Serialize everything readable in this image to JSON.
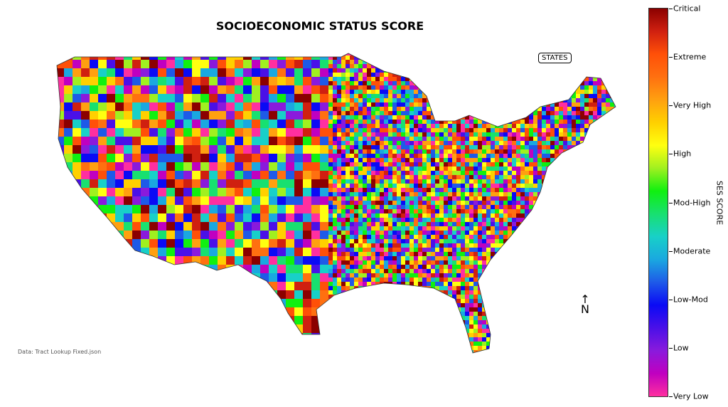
{
  "title": "SOCIOECONOMIC STATUS SCORE",
  "states_label": "STATES",
  "north_label": "N",
  "source": "Data: Tract Lookup Fixed.json",
  "colorbar": {
    "label": "SES SCORE",
    "ticks": [
      "Critical",
      "Extreme",
      "Very High",
      "High",
      "Mod-High",
      "Moderate",
      "Low-Mod",
      "Low",
      "Very Low"
    ],
    "colors": [
      "#ff2fa0",
      "#c000c0",
      "#8a1adc",
      "#4a10e8",
      "#0a0af5",
      "#1e5ae8",
      "#1aa8e0",
      "#18d0c8",
      "#18e070",
      "#10f010",
      "#a0f020",
      "#ffff10",
      "#ffd000",
      "#ffa010",
      "#ff7010",
      "#ff5008",
      "#d02010",
      "#8b0000"
    ]
  }
}
